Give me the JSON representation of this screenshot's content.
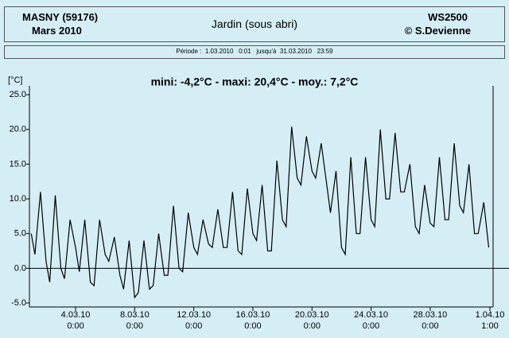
{
  "header": {
    "station": "MASNY (59176)",
    "month": "Mars 2010",
    "title": "Jardin (sous abri)",
    "device": "WS2500",
    "author": "© S.Devienne",
    "period": "Période :  1.03.2010   0:01   jusqu'à  31.03.2010   23:59"
  },
  "chart_data": {
    "type": "line",
    "title": "mini: -4,2°C - maxi: 20,4°C - moy.: 7,2°C",
    "y_label": "[°C]",
    "ylim": [
      -5.5,
      26.5
    ],
    "yticks": [
      {
        "value": 25,
        "label": "25.0"
      },
      {
        "value": 20,
        "label": "20.0"
      },
      {
        "value": 15,
        "label": "15.0"
      },
      {
        "value": 10,
        "label": "10.0"
      },
      {
        "value": 5,
        "label": "5.0"
      },
      {
        "value": 0,
        "label": "0.0"
      },
      {
        "value": -5,
        "label": "-5.0"
      }
    ],
    "xlim": [
      "1.03.10 0:00",
      "1.04.10 1:00"
    ],
    "xticks": [
      "4.03.10 0:00",
      "8.03.10 0:00",
      "12.03.10 0:00",
      "16.03.10 0:00",
      "20.03.10 0:00",
      "24.03.10 0:00",
      "28.03.10 0:00",
      "1.04.10 1:00"
    ],
    "series": [
      {
        "name": "Jardin",
        "color": "#000000",
        "x": [
          "1.03.10 0:00",
          "1.03.10 6:00",
          "1.03.10 15:00",
          "2.03.10 0:00",
          "2.03.10 6:00",
          "2.03.10 15:00",
          "3.03.10 0:00",
          "3.03.10 6:00",
          "3.03.10 15:00",
          "4.03.10 0:00",
          "4.03.10 6:00",
          "4.03.10 15:00",
          "5.03.10 0:00",
          "5.03.10 6:00",
          "5.03.10 15:00",
          "6.03.10 0:00",
          "6.03.10 6:00",
          "6.03.10 15:00",
          "7.03.10 0:00",
          "7.03.10 6:00",
          "7.03.10 15:00",
          "8.03.10 0:00",
          "8.03.10 6:00",
          "8.03.10 15:00",
          "9.03.10 0:00",
          "9.03.10 6:00",
          "9.03.10 15:00",
          "10.03.10 0:00",
          "10.03.10 6:00",
          "10.03.10 15:00",
          "11.03.10 0:00",
          "11.03.10 6:00",
          "11.03.10 15:00",
          "12.03.10 0:00",
          "12.03.10 6:00",
          "12.03.10 15:00",
          "13.03.10 0:00",
          "13.03.10 6:00",
          "13.03.10 15:00",
          "14.03.10 0:00",
          "14.03.10 6:00",
          "14.03.10 15:00",
          "15.03.10 0:00",
          "15.03.10 6:00",
          "15.03.10 15:00",
          "16.03.10 0:00",
          "16.03.10 6:00",
          "16.03.10 15:00",
          "17.03.10 0:00",
          "17.03.10 6:00",
          "17.03.10 15:00",
          "18.03.10 0:00",
          "18.03.10 6:00",
          "18.03.10 15:00",
          "19.03.10 0:00",
          "19.03.10 6:00",
          "19.03.10 15:00",
          "20.03.10 0:00",
          "20.03.10 6:00",
          "20.03.10 15:00",
          "21.03.10 0:00",
          "21.03.10 6:00",
          "21.03.10 15:00",
          "22.03.10 0:00",
          "22.03.10 6:00",
          "22.03.10 15:00",
          "23.03.10 0:00",
          "23.03.10 6:00",
          "23.03.10 15:00",
          "24.03.10 0:00",
          "24.03.10 6:00",
          "24.03.10 15:00",
          "25.03.10 0:00",
          "25.03.10 6:00",
          "25.03.10 15:00",
          "26.03.10 0:00",
          "26.03.10 6:00",
          "26.03.10 15:00",
          "27.03.10 0:00",
          "27.03.10 6:00",
          "27.03.10 15:00",
          "28.03.10 0:00",
          "28.03.10 6:00",
          "28.03.10 15:00",
          "29.03.10 0:00",
          "29.03.10 6:00",
          "29.03.10 15:00",
          "30.03.10 0:00",
          "30.03.10 6:00",
          "30.03.10 15:00",
          "31.03.10 0:00",
          "31.03.10 6:00",
          "31.03.10 15:00",
          "31.03.10 23:00"
        ],
        "values": [
          5,
          2,
          11,
          1,
          -2,
          10.5,
          0,
          -1.5,
          7,
          3,
          -0.5,
          7,
          -2,
          -2.5,
          7,
          2,
          1,
          4.5,
          -1,
          -3,
          4,
          -4.2,
          -3.5,
          4,
          -3,
          -2.5,
          5,
          -1,
          -1,
          9,
          0,
          -0.5,
          8,
          3,
          2,
          7,
          3.5,
          3,
          8.5,
          3,
          3,
          11,
          2.5,
          2,
          11.5,
          5,
          4,
          12,
          2.5,
          2.5,
          15.5,
          7,
          6,
          20.4,
          13,
          12,
          19,
          14,
          13,
          18,
          12,
          8,
          14,
          3,
          2,
          16,
          5,
          5,
          16,
          7,
          6,
          20,
          10,
          10,
          19.5,
          11,
          11,
          15,
          6,
          5,
          12,
          6.5,
          6,
          16,
          7,
          7,
          18,
          9,
          8,
          15,
          5,
          5,
          9.5,
          3
        ]
      }
    ]
  }
}
